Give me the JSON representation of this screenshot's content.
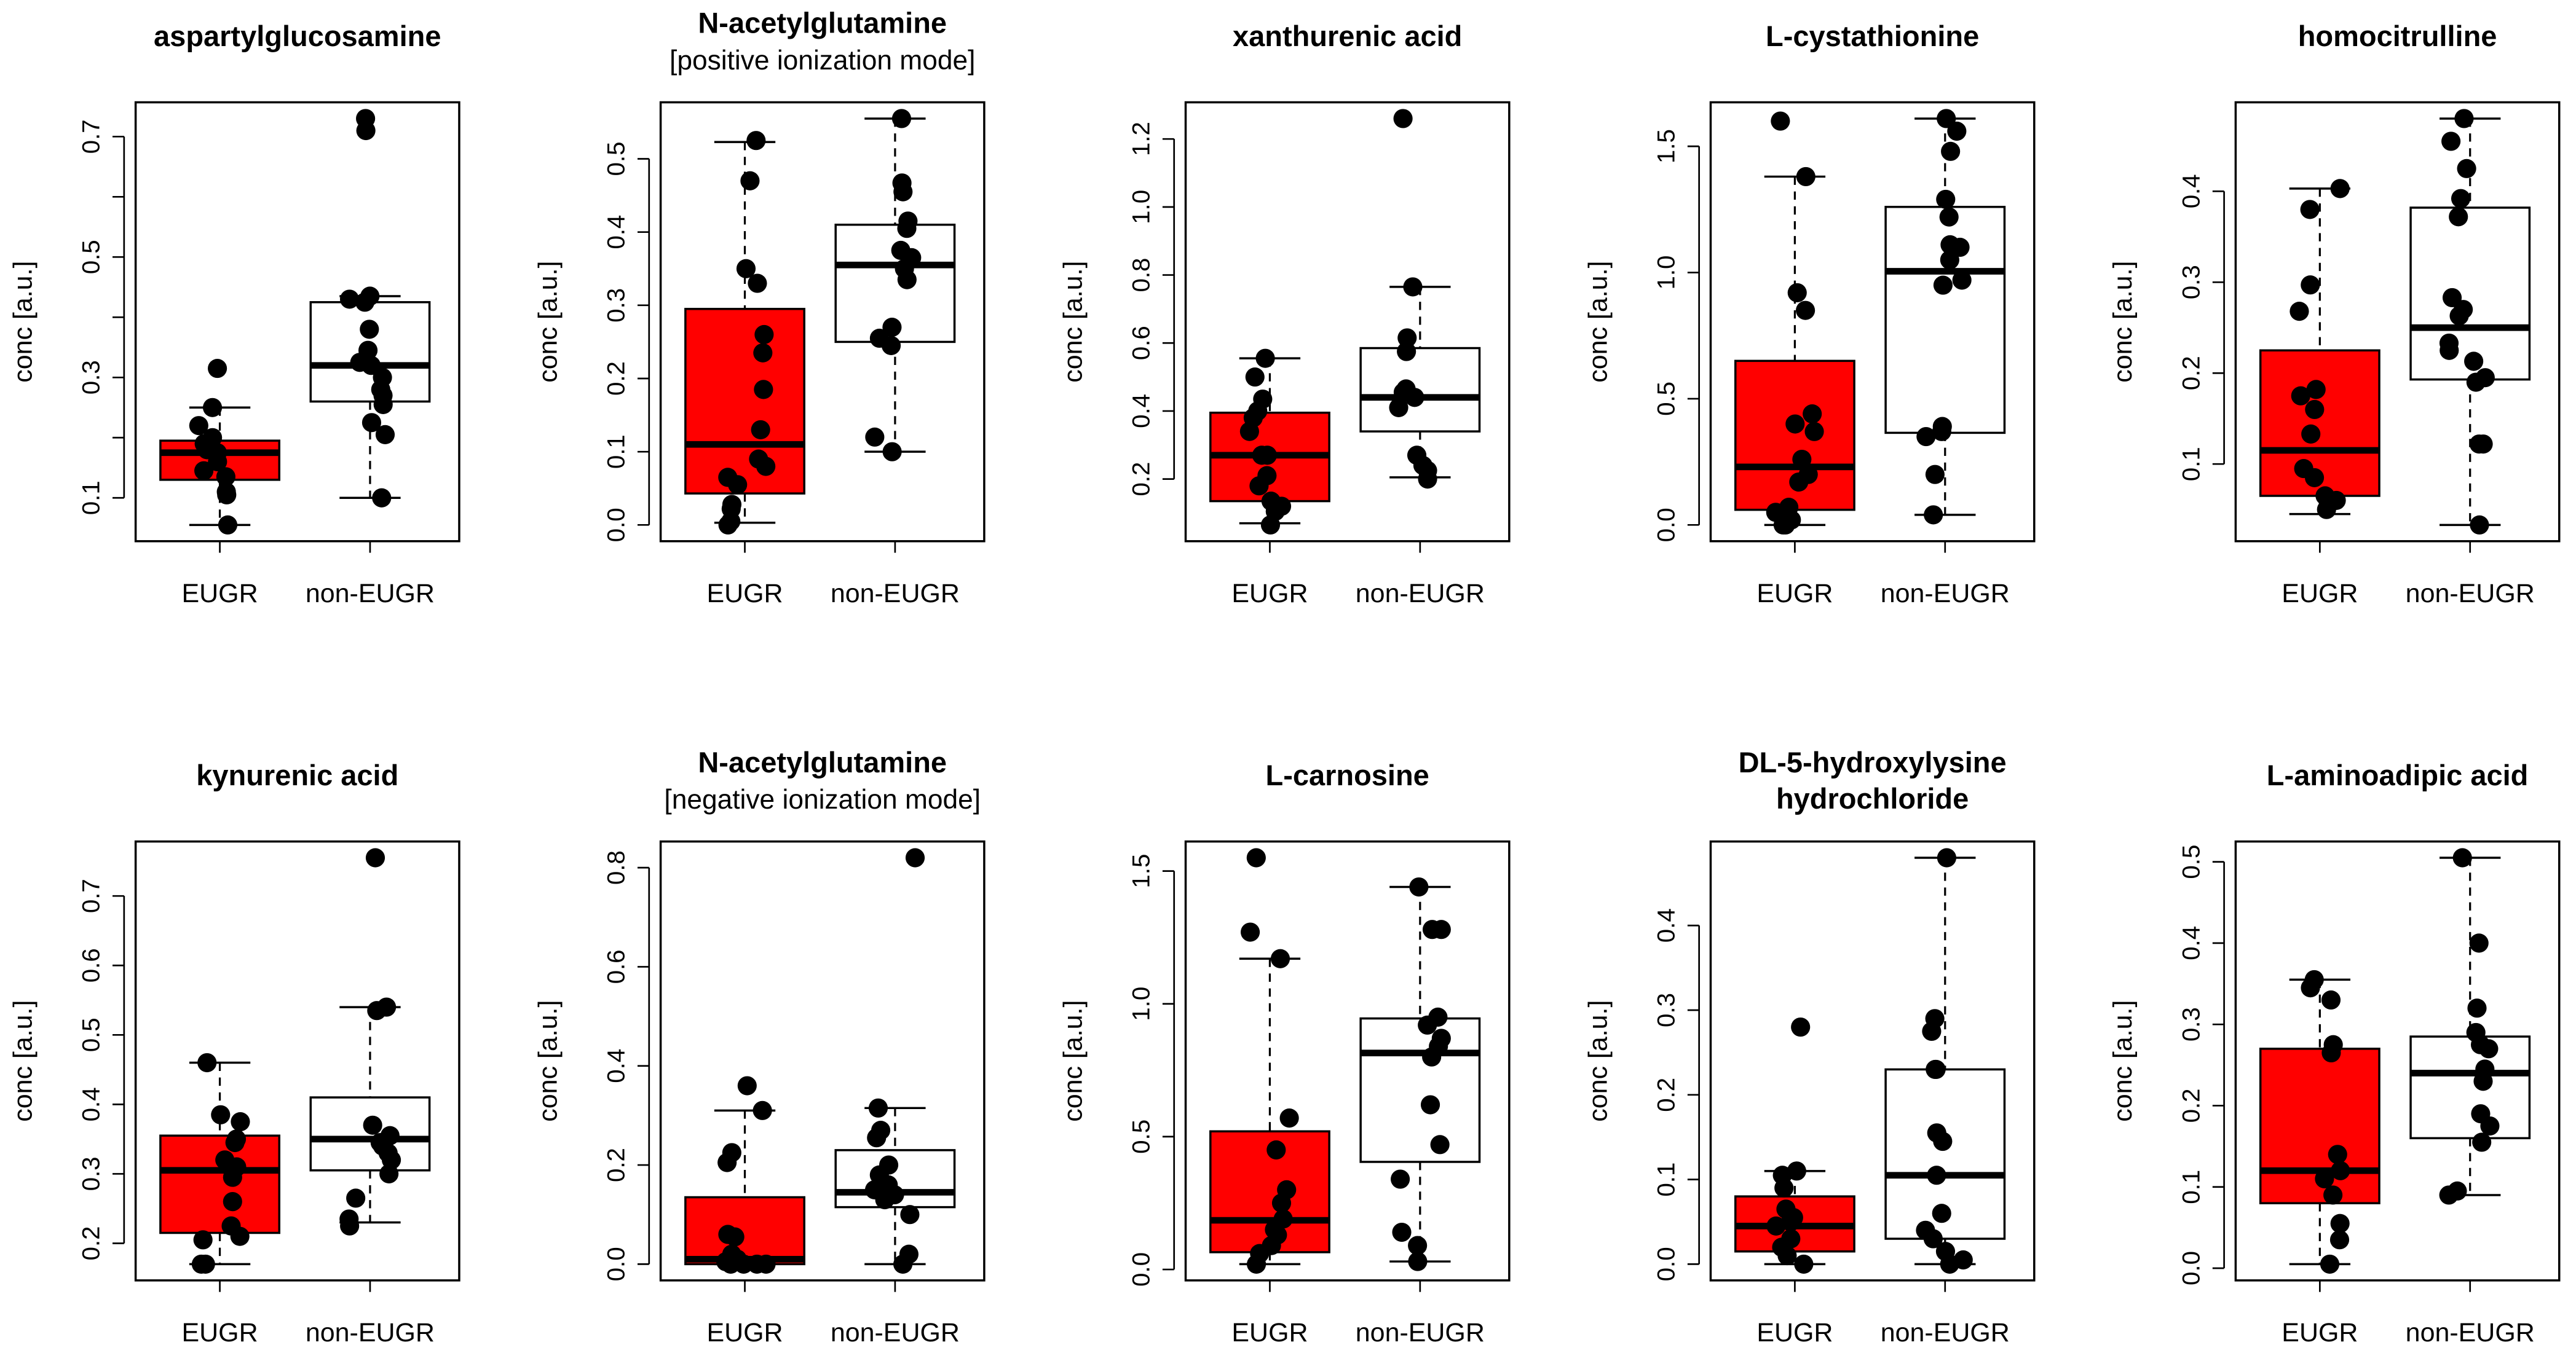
{
  "colors": {
    "eugr_fill": "#ff0000",
    "non_eugr_fill": "#ffffff",
    "points": "#000000"
  },
  "chart_data": [
    {
      "type": "box",
      "title": [
        "aspartylglucosamine"
      ],
      "ylabel": "conc [a.u.]",
      "categories": [
        "EUGR",
        "non-EUGR"
      ],
      "yticks": [
        0.1,
        0.2,
        0.3,
        0.4,
        0.5,
        0.6,
        0.7
      ],
      "ytick_labels": [
        "0.1",
        "",
        "0.3",
        "",
        "0.5",
        "",
        "0.7"
      ],
      "groups": [
        {
          "name": "EUGR",
          "whisker_low": 0.055,
          "q1": 0.13,
          "median": 0.175,
          "q3": 0.195,
          "whisker_high": 0.25,
          "points": [
            0.315,
            0.25,
            0.22,
            0.2,
            0.19,
            0.18,
            0.175,
            0.16,
            0.145,
            0.135,
            0.11,
            0.105,
            0.055
          ]
        },
        {
          "name": "non-EUGR",
          "whisker_low": 0.1,
          "q1": 0.26,
          "median": 0.32,
          "q3": 0.425,
          "whisker_high": 0.435,
          "points": [
            0.73,
            0.71,
            0.435,
            0.43,
            0.425,
            0.38,
            0.345,
            0.325,
            0.32,
            0.3,
            0.28,
            0.27,
            0.255,
            0.225,
            0.205,
            0.1
          ]
        }
      ]
    },
    {
      "type": "box",
      "title": [
        "N-acetylglutamine",
        "[positive ionization mode]"
      ],
      "ylabel": "conc [a.u.]",
      "categories": [
        "EUGR",
        "non-EUGR"
      ],
      "yticks": [
        0,
        0.1,
        0.2,
        0.3,
        0.4,
        0.5
      ],
      "ytick_labels": [
        "0.0",
        "0.1",
        "0.2",
        "0.3",
        "0.4",
        "0.5"
      ],
      "groups": [
        {
          "name": "EUGR",
          "whisker_low": 0.003,
          "q1": 0.043,
          "median": 0.11,
          "q3": 0.295,
          "whisker_high": 0.523,
          "points": [
            0.525,
            0.47,
            0.35,
            0.33,
            0.26,
            0.235,
            0.185,
            0.13,
            0.09,
            0.08,
            0.065,
            0.055,
            0.028,
            0.022,
            0.005,
            0.0
          ]
        },
        {
          "name": "non-EUGR",
          "whisker_low": 0.1,
          "q1": 0.25,
          "median": 0.355,
          "q3": 0.41,
          "whisker_high": 0.555,
          "points": [
            0.555,
            0.467,
            0.455,
            0.415,
            0.405,
            0.375,
            0.365,
            0.35,
            0.335,
            0.27,
            0.255,
            0.245,
            0.12,
            0.1
          ]
        }
      ]
    },
    {
      "type": "box",
      "title": [
        "xanthurenic  acid"
      ],
      "ylabel": "conc [a.u.]",
      "categories": [
        "EUGR",
        "non-EUGR"
      ],
      "yticks": [
        0.2,
        0.4,
        0.6,
        0.8,
        1.0,
        1.2
      ],
      "ytick_labels": [
        "0.2",
        "0.4",
        "0.6",
        "0.8",
        "1.0",
        "1.2"
      ],
      "groups": [
        {
          "name": "EUGR",
          "whisker_low": 0.07,
          "q1": 0.135,
          "median": 0.27,
          "q3": 0.395,
          "whisker_high": 0.555,
          "points": [
            0.555,
            0.5,
            0.435,
            0.4,
            0.38,
            0.34,
            0.27,
            0.27,
            0.21,
            0.18,
            0.135,
            0.12,
            0.105,
            0.065
          ]
        },
        {
          "name": "non-EUGR",
          "whisker_low": 0.205,
          "q1": 0.34,
          "median": 0.44,
          "q3": 0.585,
          "whisker_high": 0.765,
          "points": [
            1.26,
            0.765,
            0.615,
            0.575,
            0.465,
            0.455,
            0.44,
            0.41,
            0.27,
            0.24,
            0.225,
            0.2
          ]
        }
      ]
    },
    {
      "type": "box",
      "title": [
        "L-cystathionine"
      ],
      "ylabel": "conc [a.u.]",
      "categories": [
        "EUGR",
        "non-EUGR"
      ],
      "yticks": [
        0,
        0.5,
        1.0,
        1.5
      ],
      "ytick_labels": [
        "0.0",
        "0.5",
        "1.0",
        "1.5"
      ],
      "groups": [
        {
          "name": "EUGR",
          "whisker_low": 0.0,
          "q1": 0.06,
          "median": 0.23,
          "q3": 0.65,
          "whisker_high": 1.38,
          "points": [
            1.6,
            1.38,
            0.92,
            0.85,
            0.44,
            0.4,
            0.37,
            0.26,
            0.2,
            0.17,
            0.07,
            0.05,
            0.02,
            0.0,
            0.0
          ]
        },
        {
          "name": "non-EUGR",
          "whisker_low": 0.04,
          "q1": 0.365,
          "median": 1.005,
          "q3": 1.26,
          "whisker_high": 1.61,
          "points": [
            1.61,
            1.56,
            1.48,
            1.29,
            1.22,
            1.11,
            1.1,
            1.05,
            0.97,
            0.95,
            0.39,
            0.37,
            0.35,
            0.2,
            0.04
          ]
        }
      ]
    },
    {
      "type": "box",
      "title": [
        "homocitrulline"
      ],
      "ylabel": "conc [a.u.]",
      "categories": [
        "EUGR",
        "non-EUGR"
      ],
      "yticks": [
        0.1,
        0.2,
        0.3,
        0.4
      ],
      "ytick_labels": [
        "0.1",
        "0.2",
        "0.3",
        "0.4"
      ],
      "groups": [
        {
          "name": "EUGR",
          "whisker_low": 0.045,
          "q1": 0.065,
          "median": 0.115,
          "q3": 0.225,
          "whisker_high": 0.403,
          "points": [
            0.403,
            0.38,
            0.297,
            0.268,
            0.182,
            0.175,
            0.16,
            0.133,
            0.095,
            0.085,
            0.065,
            0.06,
            0.05
          ]
        },
        {
          "name": "non-EUGR",
          "whisker_low": 0.033,
          "q1": 0.193,
          "median": 0.25,
          "q3": 0.382,
          "whisker_high": 0.48,
          "points": [
            0.48,
            0.455,
            0.425,
            0.392,
            0.372,
            0.283,
            0.27,
            0.263,
            0.233,
            0.225,
            0.213,
            0.195,
            0.19,
            0.122,
            0.122,
            0.033
          ]
        }
      ]
    },
    {
      "type": "box",
      "title": [
        "kynurenic  acid"
      ],
      "ylabel": "conc [a.u.]",
      "categories": [
        "EUGR",
        "non-EUGR"
      ],
      "yticks": [
        0.2,
        0.3,
        0.4,
        0.5,
        0.6,
        0.7
      ],
      "ytick_labels": [
        "0.2",
        "0.3",
        "0.4",
        "0.5",
        "0.6",
        "0.7"
      ],
      "groups": [
        {
          "name": "EUGR",
          "whisker_low": 0.17,
          "q1": 0.215,
          "median": 0.305,
          "q3": 0.355,
          "whisker_high": 0.46,
          "points": [
            0.46,
            0.385,
            0.375,
            0.35,
            0.345,
            0.32,
            0.31,
            0.295,
            0.26,
            0.225,
            0.21,
            0.205,
            0.17,
            0.17
          ]
        },
        {
          "name": "non-EUGR",
          "whisker_low": 0.23,
          "q1": 0.305,
          "median": 0.35,
          "q3": 0.41,
          "whisker_high": 0.54,
          "points": [
            0.755,
            0.54,
            0.535,
            0.37,
            0.355,
            0.345,
            0.34,
            0.33,
            0.32,
            0.3,
            0.265,
            0.235,
            0.225
          ]
        }
      ]
    },
    {
      "type": "box",
      "title": [
        "N-acetylglutamine",
        "[negative ionization mode]"
      ],
      "ylabel": "conc [a.u.]",
      "categories": [
        "EUGR",
        "non-EUGR"
      ],
      "yticks": [
        0,
        0.2,
        0.4,
        0.6,
        0.8
      ],
      "ytick_labels": [
        "0.0",
        "0.2",
        "0.4",
        "0.6",
        "0.8"
      ],
      "groups": [
        {
          "name": "EUGR",
          "whisker_low": 0.0,
          "q1": 0.0,
          "median": 0.01,
          "q3": 0.135,
          "whisker_high": 0.31,
          "points": [
            0.36,
            0.31,
            0.225,
            0.205,
            0.06,
            0.055,
            0.02,
            0.01,
            0.005,
            0.0,
            0.0,
            0.0,
            0.0
          ]
        },
        {
          "name": "non-EUGR",
          "whisker_low": 0.0,
          "q1": 0.115,
          "median": 0.145,
          "q3": 0.23,
          "whisker_high": 0.315,
          "points": [
            0.82,
            0.315,
            0.27,
            0.255,
            0.2,
            0.18,
            0.16,
            0.15,
            0.14,
            0.13,
            0.1,
            0.02,
            0.0
          ]
        }
      ]
    },
    {
      "type": "box",
      "title": [
        "L-carnosine"
      ],
      "ylabel": "conc [a.u.]",
      "categories": [
        "EUGR",
        "non-EUGR"
      ],
      "yticks": [
        0,
        0.5,
        1.0,
        1.5
      ],
      "ytick_labels": [
        "0.0",
        "0.5",
        "1.0",
        "1.5"
      ],
      "groups": [
        {
          "name": "EUGR",
          "whisker_low": 0.02,
          "q1": 0.065,
          "median": 0.185,
          "q3": 0.52,
          "whisker_high": 1.17,
          "points": [
            1.55,
            1.27,
            1.17,
            0.57,
            0.45,
            0.3,
            0.25,
            0.19,
            0.15,
            0.13,
            0.09,
            0.06,
            0.02
          ]
        },
        {
          "name": "non-EUGR",
          "whisker_low": 0.03,
          "q1": 0.405,
          "median": 0.815,
          "q3": 0.945,
          "whisker_high": 1.44,
          "points": [
            1.44,
            1.28,
            1.28,
            0.95,
            0.92,
            0.87,
            0.84,
            0.8,
            0.62,
            0.47,
            0.34,
            0.14,
            0.09,
            0.03
          ]
        }
      ]
    },
    {
      "type": "box",
      "title": [
        "DL-5-hydroxylysine",
        "hydrochloride"
      ],
      "title_bold_all": true,
      "ylabel": "conc [a.u.]",
      "categories": [
        "EUGR",
        "non-EUGR"
      ],
      "yticks": [
        0,
        0.1,
        0.2,
        0.3,
        0.4
      ],
      "ytick_labels": [
        "0.0",
        "0.1",
        "0.2",
        "0.3",
        "0.4"
      ],
      "groups": [
        {
          "name": "EUGR",
          "whisker_low": 0.0,
          "q1": 0.015,
          "median": 0.045,
          "q3": 0.08,
          "whisker_high": 0.11,
          "points": [
            0.28,
            0.11,
            0.105,
            0.09,
            0.065,
            0.055,
            0.05,
            0.045,
            0.03,
            0.02,
            0.01,
            0.0
          ]
        },
        {
          "name": "non-EUGR",
          "whisker_low": 0.0,
          "q1": 0.03,
          "median": 0.105,
          "q3": 0.23,
          "whisker_high": 0.48,
          "points": [
            0.48,
            0.29,
            0.275,
            0.23,
            0.23,
            0.155,
            0.145,
            0.105,
            0.06,
            0.04,
            0.03,
            0.015,
            0.005,
            0.0
          ]
        }
      ]
    },
    {
      "type": "box",
      "title": [
        "L-aminoadipic  acid"
      ],
      "ylabel": "conc [a.u.]",
      "categories": [
        "EUGR",
        "non-EUGR"
      ],
      "yticks": [
        0,
        0.1,
        0.2,
        0.3,
        0.4,
        0.5
      ],
      "ytick_labels": [
        "0.0",
        "0.1",
        "0.2",
        "0.3",
        "0.4",
        "0.5"
      ],
      "groups": [
        {
          "name": "EUGR",
          "whisker_low": 0.005,
          "q1": 0.08,
          "median": 0.12,
          "q3": 0.27,
          "whisker_high": 0.355,
          "points": [
            0.355,
            0.345,
            0.33,
            0.275,
            0.265,
            0.14,
            0.12,
            0.11,
            0.09,
            0.055,
            0.035,
            0.005
          ]
        },
        {
          "name": "non-EUGR",
          "whisker_low": 0.09,
          "q1": 0.16,
          "median": 0.24,
          "q3": 0.285,
          "whisker_high": 0.505,
          "points": [
            0.505,
            0.4,
            0.32,
            0.29,
            0.275,
            0.27,
            0.245,
            0.23,
            0.19,
            0.175,
            0.155,
            0.095,
            0.09
          ]
        }
      ]
    }
  ]
}
